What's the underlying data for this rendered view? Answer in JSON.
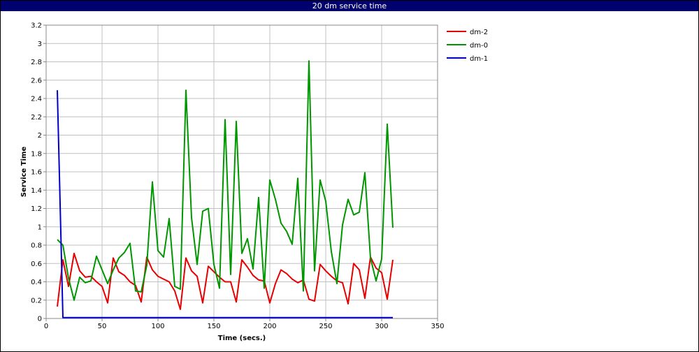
{
  "window": {
    "title": "20 dm service time"
  },
  "chart_data": {
    "type": "line",
    "title": "20 dm service time",
    "xlabel": "Time (secs.)",
    "ylabel": "Service Time",
    "xlim": [
      0,
      350
    ],
    "ylim": [
      0,
      3.2
    ],
    "xticks": [
      0,
      50,
      100,
      150,
      200,
      250,
      300,
      350
    ],
    "yticks": [
      0,
      0.2,
      0.4,
      0.6,
      0.8,
      1,
      1.2,
      1.4,
      1.6,
      1.8,
      2,
      2.2,
      2.4,
      2.6,
      2.8,
      3,
      3.2
    ],
    "xtick_labels": [
      "0",
      "50",
      "100",
      "150",
      "200",
      "250",
      "300",
      "350"
    ],
    "ytick_labels": [
      "0",
      "0.2",
      "0.4",
      "0.6",
      "0.8",
      "1",
      "1.2",
      "1.4",
      "1.6",
      "1.8",
      "2",
      "2.2",
      "2.4",
      "2.6",
      "2.8",
      "3",
      "3.2"
    ],
    "grid": true,
    "legend_position": "right",
    "series": [
      {
        "name": "dm-2",
        "color": "#e80000",
        "points": [
          [
            10,
            0.13
          ],
          [
            15,
            0.64
          ],
          [
            20,
            0.35
          ],
          [
            25,
            0.71
          ],
          [
            30,
            0.52
          ],
          [
            35,
            0.45
          ],
          [
            40,
            0.46
          ],
          [
            45,
            0.4
          ],
          [
            50,
            0.35
          ],
          [
            55,
            0.17
          ],
          [
            60,
            0.66
          ],
          [
            65,
            0.51
          ],
          [
            70,
            0.47
          ],
          [
            75,
            0.4
          ],
          [
            80,
            0.36
          ],
          [
            85,
            0.18
          ],
          [
            90,
            0.67
          ],
          [
            95,
            0.53
          ],
          [
            100,
            0.46
          ],
          [
            105,
            0.43
          ],
          [
            110,
            0.4
          ],
          [
            115,
            0.3
          ],
          [
            120,
            0.1
          ],
          [
            125,
            0.66
          ],
          [
            130,
            0.52
          ],
          [
            135,
            0.46
          ],
          [
            140,
            0.17
          ],
          [
            145,
            0.57
          ],
          [
            150,
            0.51
          ],
          [
            155,
            0.45
          ],
          [
            160,
            0.4
          ],
          [
            165,
            0.4
          ],
          [
            170,
            0.18
          ],
          [
            175,
            0.64
          ],
          [
            180,
            0.56
          ],
          [
            185,
            0.47
          ],
          [
            190,
            0.42
          ],
          [
            195,
            0.41
          ],
          [
            200,
            0.17
          ],
          [
            205,
            0.38
          ],
          [
            210,
            0.53
          ],
          [
            215,
            0.49
          ],
          [
            220,
            0.43
          ],
          [
            225,
            0.39
          ],
          [
            230,
            0.42
          ],
          [
            235,
            0.21
          ],
          [
            240,
            0.19
          ],
          [
            245,
            0.59
          ],
          [
            250,
            0.52
          ],
          [
            255,
            0.46
          ],
          [
            260,
            0.41
          ],
          [
            265,
            0.39
          ],
          [
            270,
            0.16
          ],
          [
            275,
            0.6
          ],
          [
            280,
            0.53
          ],
          [
            285,
            0.22
          ],
          [
            290,
            0.67
          ],
          [
            295,
            0.55
          ],
          [
            300,
            0.5
          ],
          [
            305,
            0.21
          ],
          [
            310,
            0.64
          ]
        ]
      },
      {
        "name": "dm-0",
        "color": "#009600",
        "points": [
          [
            10,
            0.86
          ],
          [
            15,
            0.8
          ],
          [
            20,
            0.44
          ],
          [
            25,
            0.2
          ],
          [
            30,
            0.45
          ],
          [
            35,
            0.39
          ],
          [
            40,
            0.41
          ],
          [
            45,
            0.68
          ],
          [
            50,
            0.53
          ],
          [
            55,
            0.38
          ],
          [
            60,
            0.53
          ],
          [
            65,
            0.66
          ],
          [
            70,
            0.72
          ],
          [
            75,
            0.82
          ],
          [
            80,
            0.3
          ],
          [
            85,
            0.29
          ],
          [
            90,
            0.58
          ],
          [
            95,
            1.49
          ],
          [
            100,
            0.74
          ],
          [
            105,
            0.67
          ],
          [
            110,
            1.09
          ],
          [
            115,
            0.35
          ],
          [
            120,
            0.32
          ],
          [
            125,
            2.49
          ],
          [
            130,
            1.1
          ],
          [
            135,
            0.59
          ],
          [
            140,
            1.17
          ],
          [
            145,
            1.2
          ],
          [
            150,
            0.59
          ],
          [
            155,
            0.33
          ],
          [
            160,
            2.17
          ],
          [
            165,
            0.48
          ],
          [
            170,
            2.15
          ],
          [
            175,
            0.71
          ],
          [
            180,
            0.87
          ],
          [
            185,
            0.54
          ],
          [
            190,
            1.32
          ],
          [
            195,
            0.33
          ],
          [
            200,
            1.51
          ],
          [
            205,
            1.3
          ],
          [
            210,
            1.04
          ],
          [
            215,
            0.95
          ],
          [
            220,
            0.81
          ],
          [
            225,
            1.53
          ],
          [
            230,
            0.3
          ],
          [
            235,
            2.81
          ],
          [
            240,
            0.52
          ],
          [
            245,
            1.51
          ],
          [
            250,
            1.28
          ],
          [
            255,
            0.73
          ],
          [
            260,
            0.38
          ],
          [
            265,
            1.02
          ],
          [
            270,
            1.3
          ],
          [
            275,
            1.13
          ],
          [
            280,
            1.16
          ],
          [
            285,
            1.59
          ],
          [
            290,
            0.66
          ],
          [
            295,
            0.41
          ],
          [
            300,
            0.65
          ],
          [
            305,
            2.12
          ],
          [
            310,
            0.99
          ]
        ]
      },
      {
        "name": "dm-1",
        "color": "#0000c8",
        "points": [
          [
            10,
            2.49
          ],
          [
            15,
            0.01
          ],
          [
            310,
            0.01
          ]
        ]
      }
    ]
  }
}
